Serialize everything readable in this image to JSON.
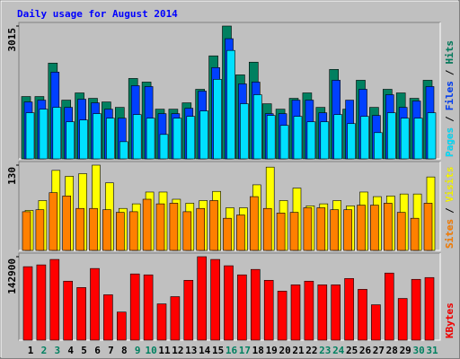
{
  "chart_data": [
    {
      "type": "bar",
      "title": "Daily usage for August 2014",
      "legend_separator": "/",
      "ylim": [
        0,
        3015
      ],
      "yticks": [
        3015
      ],
      "series": [
        {
          "name": "Hits",
          "color": "#008060",
          "values": [
            1415,
            1415,
            2174,
            1333,
            1497,
            1374,
            1292,
            1169,
            1825,
            1743,
            1128,
            1128,
            1272,
            1579,
            2338,
            3015,
            1907,
            2195,
            1251,
            1128,
            1374,
            1497,
            1169,
            2030,
            1128,
            1784,
            1169,
            1579,
            1497,
            1374,
            1784
          ]
        },
        {
          "name": "Files",
          "color": "#0040ff",
          "values": [
            1292,
            1333,
            1969,
            1169,
            1354,
            1272,
            1128,
            923,
            1661,
            1641,
            1026,
            1026,
            1149,
            1538,
            2072,
            2728,
            1702,
            1743,
            1026,
            1026,
            1333,
            1333,
            1046,
            1784,
            1333,
            1579,
            985,
            1456,
            1169,
            1313,
            1641
          ]
        },
        {
          "name": "Pages",
          "color": "#00e0ff",
          "values": [
            1046,
            1128,
            1169,
            841,
            882,
            1026,
            923,
            390,
            1005,
            923,
            554,
            923,
            964,
            1087,
            1805,
            2461,
            1251,
            1456,
            985,
            759,
            964,
            841,
            841,
            1005,
            800,
            964,
            595,
            1046,
            923,
            923,
            1046
          ]
        }
      ]
    },
    {
      "type": "bar",
      "legend_separator": "/",
      "ylim": [
        0,
        130
      ],
      "yticks": [
        130
      ],
      "series": [
        {
          "name": "Visits",
          "color": "#ffff00",
          "values": [
            61,
            76,
            122,
            113,
            117,
            130,
            103,
            64,
            71,
            89,
            89,
            78,
            72,
            76,
            90,
            65,
            65,
            100,
            127,
            76,
            95,
            68,
            71,
            76,
            68,
            89,
            82,
            83,
            86,
            86,
            112
          ]
        },
        {
          "name": "Sites",
          "color": "#ff8000",
          "values": [
            59,
            62,
            88,
            83,
            64,
            64,
            62,
            58,
            59,
            78,
            71,
            72,
            59,
            64,
            76,
            49,
            54,
            82,
            64,
            57,
            58,
            65,
            65,
            62,
            62,
            69,
            69,
            72,
            58,
            49,
            72
          ]
        }
      ]
    },
    {
      "type": "bar",
      "ylim": [
        0,
        142900
      ],
      "yticks": [
        142900
      ],
      "categories": [
        "1",
        "2",
        "3",
        "4",
        "5",
        "6",
        "7",
        "8",
        "9",
        "10",
        "11",
        "12",
        "13",
        "14",
        "15",
        "16",
        "17",
        "18",
        "19",
        "20",
        "21",
        "22",
        "23",
        "24",
        "25",
        "26",
        "27",
        "28",
        "29",
        "30",
        "31"
      ],
      "category_label_colors": [
        "#000000",
        "#008060",
        "#008060",
        "#000000",
        "#000000",
        "#000000",
        "#000000",
        "#000000",
        "#008060",
        "#008060",
        "#000000",
        "#000000",
        "#000000",
        "#000000",
        "#000000",
        "#008060",
        "#008060",
        "#000000",
        "#000000",
        "#000000",
        "#000000",
        "#000000",
        "#008060",
        "#008060",
        "#000000",
        "#000000",
        "#000000",
        "#000000",
        "#000000",
        "#008060",
        "#008060"
      ],
      "series": [
        {
          "name": "KBytes",
          "color": "#ff0000",
          "values": [
            125800,
            128900,
            138200,
            101000,
            90100,
            122700,
            77700,
            48100,
            113400,
            111800,
            62100,
            74500,
            102500,
            142900,
            138200,
            127400,
            111800,
            121100,
            102500,
            83900,
            94700,
            101000,
            94700,
            94700,
            105600,
            87000,
            60600,
            114900,
            71400,
            104100,
            107200
          ]
        }
      ]
    }
  ]
}
